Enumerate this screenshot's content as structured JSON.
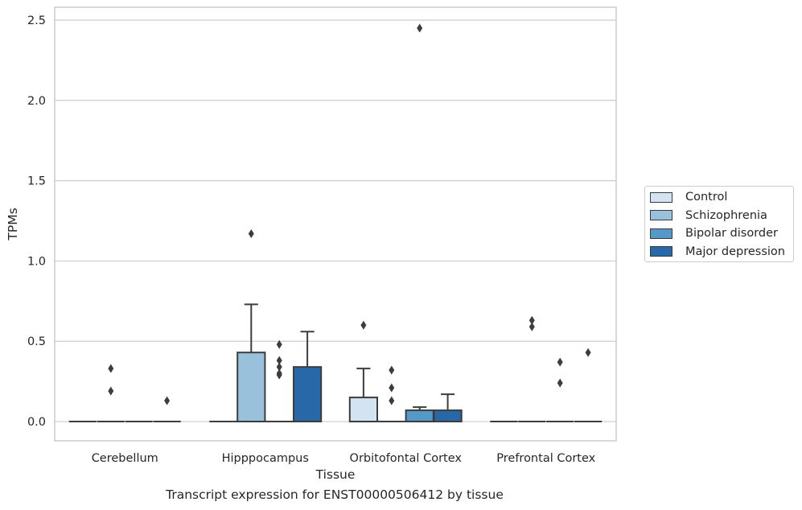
{
  "caption": "Transcript expression for ENST00000506412 by tissue",
  "chart_data": {
    "type": "box",
    "xlabel": "Tissue",
    "ylabel": "TPMs",
    "categories": [
      "Cerebellum",
      "Hipppocampus",
      "Orbitofontal Cortex",
      "Prefrontal Cortex"
    ],
    "ylim": [
      -0.12,
      2.58
    ],
    "yticks": [
      0.0,
      0.5,
      1.0,
      1.5,
      2.0,
      2.5
    ],
    "ytick_labels": [
      "0.0",
      "0.5",
      "1.0",
      "1.5",
      "2.0",
      "2.5"
    ],
    "grid": true,
    "legend_position": "right",
    "series": [
      {
        "name": "Control",
        "color": "#d3e3f2",
        "boxes": [
          {
            "category": "Cerebellum",
            "q1": 0,
            "median": 0,
            "q3": 0,
            "whisker_low": 0,
            "whisker_high": 0,
            "outliers": []
          },
          {
            "category": "Hipppocampus",
            "q1": 0,
            "median": 0,
            "q3": 0,
            "whisker_low": 0,
            "whisker_high": 0,
            "outliers": []
          },
          {
            "category": "Orbitofontal Cortex",
            "q1": 0,
            "median": 0,
            "q3": 0.15,
            "whisker_low": 0,
            "whisker_high": 0.33,
            "outliers": [
              0.6
            ]
          },
          {
            "category": "Prefrontal Cortex",
            "q1": 0,
            "median": 0,
            "q3": 0,
            "whisker_low": 0,
            "whisker_high": 0,
            "outliers": []
          }
        ]
      },
      {
        "name": "Schizophrenia",
        "color": "#9ac1db",
        "boxes": [
          {
            "category": "Cerebellum",
            "q1": 0,
            "median": 0,
            "q3": 0,
            "whisker_low": 0,
            "whisker_high": 0,
            "outliers": [
              0.33,
              0.19
            ]
          },
          {
            "category": "Hipppocampus",
            "q1": 0,
            "median": 0,
            "q3": 0.43,
            "whisker_low": 0,
            "whisker_high": 0.73,
            "outliers": [
              1.17
            ]
          },
          {
            "category": "Orbitofontal Cortex",
            "q1": 0,
            "median": 0,
            "q3": 0,
            "whisker_low": 0,
            "whisker_high": 0,
            "outliers": [
              0.32,
              0.21,
              0.13
            ]
          },
          {
            "category": "Prefrontal Cortex",
            "q1": 0,
            "median": 0,
            "q3": 0,
            "whisker_low": 0,
            "whisker_high": 0,
            "outliers": [
              0.63,
              0.59
            ]
          }
        ]
      },
      {
        "name": "Bipolar disorder",
        "color": "#5499c7",
        "boxes": [
          {
            "category": "Cerebellum",
            "q1": 0,
            "median": 0,
            "q3": 0,
            "whisker_low": 0,
            "whisker_high": 0,
            "outliers": []
          },
          {
            "category": "Hipppocampus",
            "q1": 0,
            "median": 0,
            "q3": 0,
            "whisker_low": 0,
            "whisker_high": 0,
            "outliers": [
              0.38,
              0.34,
              0.3,
              0.48,
              0.29
            ]
          },
          {
            "category": "Orbitofontal Cortex",
            "q1": 0,
            "median": 0,
            "q3": 0.07,
            "whisker_low": 0,
            "whisker_high": 0.09,
            "outliers": [
              2.45
            ]
          },
          {
            "category": "Prefrontal Cortex",
            "q1": 0,
            "median": 0,
            "q3": 0,
            "whisker_low": 0,
            "whisker_high": 0,
            "outliers": [
              0.37,
              0.24
            ]
          }
        ]
      },
      {
        "name": "Major depression",
        "color": "#2868a8",
        "boxes": [
          {
            "category": "Cerebellum",
            "q1": 0,
            "median": 0,
            "q3": 0,
            "whisker_low": 0,
            "whisker_high": 0,
            "outliers": [
              0.13
            ]
          },
          {
            "category": "Hipppocampus",
            "q1": 0,
            "median": 0,
            "q3": 0.34,
            "whisker_low": 0,
            "whisker_high": 0.56,
            "outliers": []
          },
          {
            "category": "Orbitofontal Cortex",
            "q1": 0,
            "median": 0,
            "q3": 0.07,
            "whisker_low": 0,
            "whisker_high": 0.17,
            "outliers": []
          },
          {
            "category": "Prefrontal Cortex",
            "q1": 0,
            "median": 0,
            "q3": 0,
            "whisker_low": 0,
            "whisker_high": 0,
            "outliers": [
              0.43
            ]
          }
        ]
      }
    ]
  }
}
